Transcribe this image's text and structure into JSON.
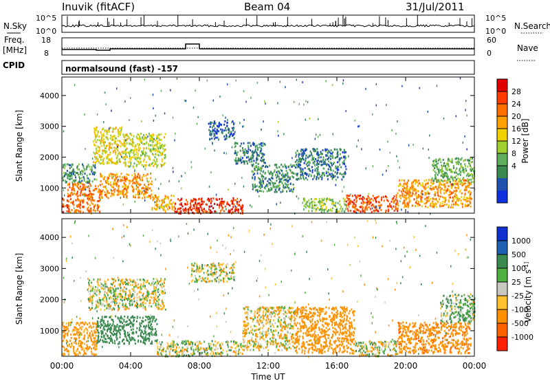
{
  "header": {
    "station": "Inuvik (fitACF)",
    "beam": "Beam 04",
    "date": "31/Jul/2011"
  },
  "top_panels": {
    "nsky_label": "N.Sky",
    "nsky_ticks": [
      "10^5",
      "10^0"
    ],
    "nsearch_label": "N.Search",
    "nsearch_ticks": [
      "10^5",
      "10^0"
    ],
    "freq_label": "Freq.",
    "freq_unit": "[MHz]",
    "freq_ticks": [
      "18",
      "8"
    ],
    "nave_label": "Nave",
    "nave_ticks": [
      "60",
      "0"
    ],
    "cpid_label": "CPID",
    "cpid_value": "normalsound (fast) -157"
  },
  "chart_data": [
    {
      "type": "heatmap",
      "panel": "power",
      "ylabel": "Slant Range [km]",
      "ylim": [
        180,
        4600
      ],
      "y_ticks": [
        "4000",
        "3000",
        "2000",
        "1000"
      ],
      "x_ticks": [
        "00:00",
        "04:00",
        "08:00",
        "12:00",
        "16:00",
        "20:00",
        "00:00"
      ],
      "colorbar_label": "Power [dB]",
      "colorbar_ticks": [
        "28",
        "24",
        "20",
        "16",
        "12",
        "8",
        "4"
      ],
      "colorbar_colors": [
        "#e00000",
        "#ff3c00",
        "#ff7000",
        "#ffa000",
        "#f0d000",
        "#a0d030",
        "#60b060",
        "#3a8a50",
        "#2050b0",
        "#1030e0"
      ],
      "bands": [
        {
          "x0": 0.0,
          "x1": 0.3,
          "y0": 250,
          "y1": 700,
          "value": 28
        },
        {
          "x0": 0.3,
          "x1": 2.2,
          "y0": 200,
          "y1": 1200,
          "value": 24
        },
        {
          "x0": 2.2,
          "x1": 5.2,
          "y0": 700,
          "y1": 1500,
          "value": 22
        },
        {
          "x0": 5.2,
          "x1": 6.5,
          "y0": 250,
          "y1": 800,
          "value": 20
        },
        {
          "x0": 6.5,
          "x1": 10.5,
          "y0": 200,
          "y1": 700,
          "value": 28
        },
        {
          "x0": 1.8,
          "x1": 3.5,
          "y0": 1800,
          "y1": 3000,
          "value": 18
        },
        {
          "x0": 3.5,
          "x1": 6.0,
          "y0": 1700,
          "y1": 2800,
          "value": 16
        },
        {
          "x0": 0.0,
          "x1": 2.0,
          "y0": 1200,
          "y1": 1800,
          "value": 10
        },
        {
          "x0": 8.5,
          "x1": 10.0,
          "y0": 2600,
          "y1": 3200,
          "value": 6
        },
        {
          "x0": 10.0,
          "x1": 11.8,
          "y0": 1800,
          "y1": 2500,
          "value": 8
        },
        {
          "x0": 11.0,
          "x1": 13.5,
          "y0": 900,
          "y1": 1800,
          "value": 10
        },
        {
          "x0": 13.5,
          "x1": 16.5,
          "y0": 1300,
          "y1": 2300,
          "value": 8
        },
        {
          "x0": 16.5,
          "x1": 19.5,
          "y0": 250,
          "y1": 800,
          "value": 26
        },
        {
          "x0": 19.5,
          "x1": 23.8,
          "y0": 400,
          "y1": 1300,
          "value": 22
        },
        {
          "x0": 21.5,
          "x1": 24.0,
          "y0": 1200,
          "y1": 2000,
          "value": 12
        },
        {
          "x0": 14.0,
          "x1": 16.5,
          "y0": 250,
          "y1": 700,
          "value": 14
        }
      ]
    },
    {
      "type": "heatmap",
      "panel": "velocity",
      "ylabel": "Slant Range [km]",
      "ylim": [
        180,
        4600
      ],
      "y_ticks": [
        "4000",
        "3000",
        "2000",
        "1000"
      ],
      "x_ticks": [
        "00:00",
        "04:00",
        "08:00",
        "12:00",
        "16:00",
        "20:00",
        "00:00"
      ],
      "xlabel": "Time UT",
      "colorbar_label": "Velocity [m s^-1]",
      "colorbar_ticks": [
        "1000",
        "500",
        "100",
        "25",
        "-25",
        "-100",
        "-500",
        "-1000"
      ],
      "colorbar_colors": [
        "#1030d0",
        "#2060b0",
        "#3a8a50",
        "#50b040",
        "#c8c8c0",
        "#ffc030",
        "#ff9000",
        "#ff6000",
        "#ff2000"
      ],
      "bands": [
        {
          "x0": 0.0,
          "x1": 2.0,
          "y0": 250,
          "y1": 1300,
          "value": -200
        },
        {
          "x0": 2.0,
          "x1": 5.5,
          "y0": 600,
          "y1": 1500,
          "value": 300
        },
        {
          "x0": 5.5,
          "x1": 10.5,
          "y0": 200,
          "y1": 700,
          "value": 0
        },
        {
          "x0": 1.5,
          "x1": 6.0,
          "y0": 1700,
          "y1": 2700,
          "value": 0
        },
        {
          "x0": 7.5,
          "x1": 10.0,
          "y0": 2600,
          "y1": 3200,
          "value": 0
        },
        {
          "x0": 10.5,
          "x1": 13.5,
          "y0": 400,
          "y1": 1800,
          "value": -60
        },
        {
          "x0": 13.5,
          "x1": 17.0,
          "y0": 300,
          "y1": 1800,
          "value": -300
        },
        {
          "x0": 17.0,
          "x1": 19.5,
          "y0": 200,
          "y1": 700,
          "value": 0
        },
        {
          "x0": 19.5,
          "x1": 23.8,
          "y0": 300,
          "y1": 1300,
          "value": -400
        },
        {
          "x0": 22.0,
          "x1": 24.0,
          "y0": 1300,
          "y1": 2200,
          "value": 80
        }
      ]
    }
  ]
}
